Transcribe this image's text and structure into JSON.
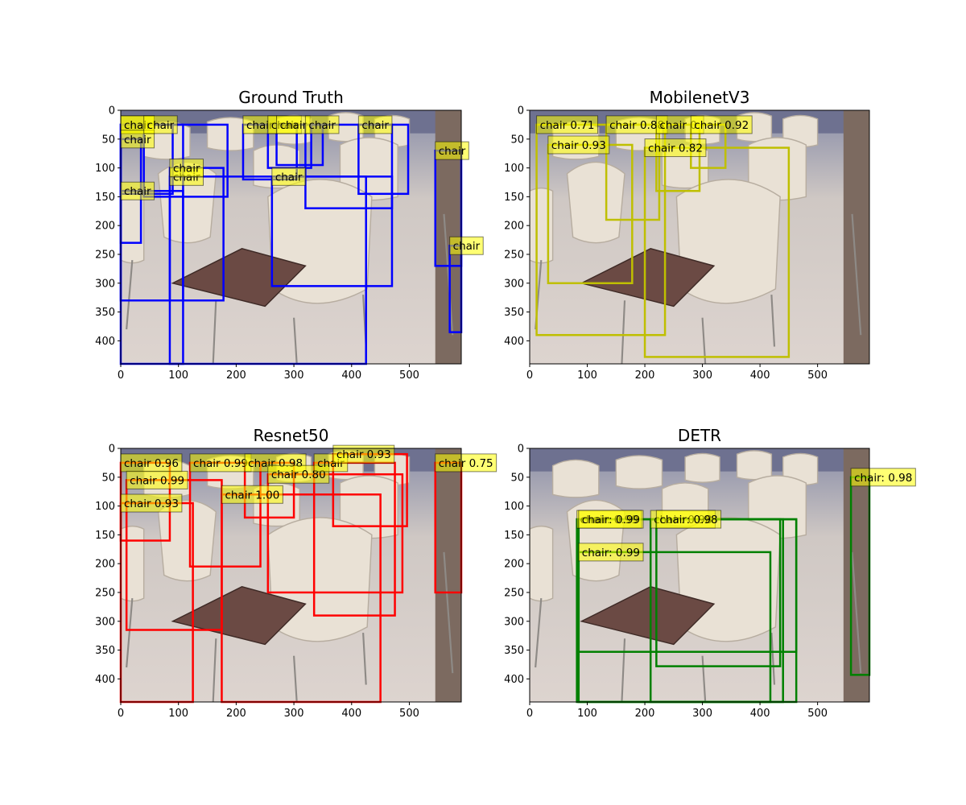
{
  "chart_data": [
    {
      "type": "image-detection",
      "title": "Ground Truth",
      "box_color": "#0000ff",
      "label_bg": "#ffff00",
      "xlim": [
        0,
        590
      ],
      "ylim": [
        440,
        0
      ],
      "xticks": [
        0,
        100,
        200,
        300,
        400,
        500
      ],
      "yticks": [
        0,
        50,
        100,
        150,
        200,
        250,
        300,
        350,
        400
      ],
      "boxes": [
        {
          "label": "chair",
          "x0": 0,
          "y0": 25,
          "x1": 108,
          "y1": 440
        },
        {
          "label": "chair",
          "x0": 0,
          "y0": 25,
          "x1": 90,
          "y1": 145
        },
        {
          "label": "chair",
          "x0": 0,
          "y0": 50,
          "x1": 35,
          "y1": 230
        },
        {
          "label": "chair",
          "x0": 40,
          "y0": 25,
          "x1": 185,
          "y1": 150
        },
        {
          "label": "chair",
          "x0": 85,
          "y0": 115,
          "x1": 425,
          "y1": 440
        },
        {
          "label": "chair",
          "x0": 0,
          "y0": 140,
          "x1": 108,
          "y1": 330
        },
        {
          "label": "chair",
          "x0": 85,
          "y0": 100,
          "x1": 178,
          "y1": 330
        },
        {
          "label": "chair",
          "x0": 212,
          "y0": 25,
          "x1": 305,
          "y1": 120
        },
        {
          "label": "chair",
          "x0": 255,
          "y0": 25,
          "x1": 330,
          "y1": 100
        },
        {
          "label": "chair",
          "x0": 262,
          "y0": 115,
          "x1": 470,
          "y1": 305
        },
        {
          "label": "chair",
          "x0": 270,
          "y0": 25,
          "x1": 350,
          "y1": 95
        },
        {
          "label": "chair",
          "x0": 320,
          "y0": 25,
          "x1": 470,
          "y1": 170
        },
        {
          "label": "chair",
          "x0": 412,
          "y0": 25,
          "x1": 498,
          "y1": 145
        },
        {
          "label": "chair",
          "x0": 545,
          "y0": 70,
          "x1": 590,
          "y1": 270
        },
        {
          "label": "chair",
          "x0": 570,
          "y0": 235,
          "x1": 590,
          "y1": 385
        }
      ]
    },
    {
      "type": "image-detection",
      "title": "MobilenetV3",
      "box_color": "#bfbf00",
      "label_bg": "#ffff00",
      "xlim": [
        0,
        590
      ],
      "ylim": [
        440,
        0
      ],
      "xticks": [
        0,
        100,
        200,
        300,
        400,
        500
      ],
      "yticks": [
        0,
        50,
        100,
        150,
        200,
        250,
        300,
        350,
        400
      ],
      "boxes": [
        {
          "label": "chair 0.71",
          "x0": 12,
          "y0": 25,
          "x1": 235,
          "y1": 390
        },
        {
          "label": "chair 0.93",
          "x0": 32,
          "y0": 60,
          "x1": 178,
          "y1": 300
        },
        {
          "label": "chair 0.88",
          "x0": 133,
          "y0": 25,
          "x1": 225,
          "y1": 190
        },
        {
          "label": "chair 0.82",
          "x0": 200,
          "y0": 65,
          "x1": 450,
          "y1": 428
        },
        {
          "label": "chair 0.",
          "x0": 220,
          "y0": 25,
          "x1": 295,
          "y1": 140
        },
        {
          "label": "chair 0.92",
          "x0": 280,
          "y0": 25,
          "x1": 340,
          "y1": 100
        }
      ]
    },
    {
      "type": "image-detection",
      "title": "Resnet50",
      "box_color": "#ff0000",
      "label_bg": "#ffff00",
      "xlim": [
        0,
        590
      ],
      "ylim": [
        440,
        0
      ],
      "xticks": [
        0,
        100,
        200,
        300,
        400,
        500
      ],
      "yticks": [
        0,
        50,
        100,
        150,
        200,
        250,
        300,
        350,
        400
      ],
      "boxes": [
        {
          "label": "chair 0.96",
          "x0": 0,
          "y0": 25,
          "x1": 85,
          "y1": 160
        },
        {
          "label": "chair 0.99",
          "x0": 10,
          "y0": 55,
          "x1": 175,
          "y1": 315
        },
        {
          "label": "chair 0.93",
          "x0": 0,
          "y0": 95,
          "x1": 125,
          "y1": 440
        },
        {
          "label": "chair 0.99",
          "x0": 120,
          "y0": 25,
          "x1": 242,
          "y1": 205
        },
        {
          "label": "chair 1.00",
          "x0": 175,
          "y0": 80,
          "x1": 450,
          "y1": 440
        },
        {
          "label": "chair 0.98",
          "x0": 215,
          "y0": 25,
          "x1": 300,
          "y1": 120
        },
        {
          "label": "chair 0.80",
          "x0": 255,
          "y0": 45,
          "x1": 488,
          "y1": 250
        },
        {
          "label": "chair",
          "x0": 335,
          "y0": 25,
          "x1": 475,
          "y1": 290
        },
        {
          "label": "chair 0.93",
          "x0": 368,
          "y0": 10,
          "x1": 496,
          "y1": 135
        },
        {
          "label": "chair 0.75",
          "x0": 545,
          "y0": 25,
          "x1": 590,
          "y1": 250
        }
      ]
    },
    {
      "type": "image-detection",
      "title": "DETR",
      "box_color": "#008000",
      "label_bg": "#ffff00",
      "xlim": [
        0,
        590
      ],
      "ylim": [
        440,
        0
      ],
      "xticks": [
        0,
        100,
        200,
        300,
        400,
        500
      ],
      "yticks": [
        0,
        50,
        100,
        150,
        200,
        250,
        300,
        350,
        400
      ],
      "boxes": [
        {
          "label": "chair: 0.99",
          "x0": 82,
          "y0": 123,
          "x1": 463,
          "y1": 440
        },
        {
          "label": "chair: 0.99",
          "x0": 85,
          "y0": 123,
          "x1": 463,
          "y1": 353
        },
        {
          "label": "chair: 0.99",
          "x0": 85,
          "y0": 180,
          "x1": 418,
          "y1": 440
        },
        {
          "label": "chair: 0.98",
          "x0": 210,
          "y0": 123,
          "x1": 440,
          "y1": 440
        },
        {
          "label": "chair: 0.98",
          "x0": 220,
          "y0": 123,
          "x1": 435,
          "y1": 378
        },
        {
          "label": "chair: 0.98",
          "x0": 558,
          "y0": 50,
          "x1": 590,
          "y1": 393
        }
      ]
    }
  ]
}
